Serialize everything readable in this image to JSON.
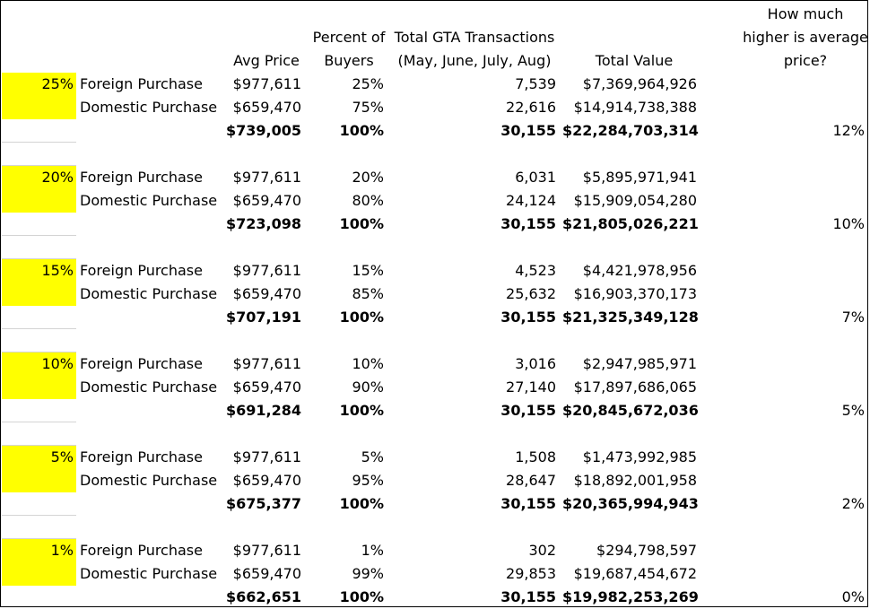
{
  "headers": {
    "avg_price": [
      "Avg Price"
    ],
    "percent_of_buyers": [
      "Percent of",
      "Buyers"
    ],
    "transactions": [
      "Total GTA Transactions",
      "(May, June, July, Aug)"
    ],
    "total_value": [
      "Total Value"
    ],
    "higher_price": [
      "How much",
      "higher is average",
      "price?"
    ]
  },
  "blocks": [
    {
      "scenario": "25%",
      "rows": [
        {
          "label": "Foreign Purchase",
          "avg_price": "$977,611",
          "percent": "25%",
          "transactions": "7,539",
          "total_value": "$7,369,964,926"
        },
        {
          "label": "Domestic Purchase",
          "avg_price": "$659,470",
          "percent": "75%",
          "transactions": "22,616",
          "total_value": "$14,914,738,388"
        }
      ],
      "total": {
        "avg_price": "$739,005",
        "percent": "100%",
        "transactions": "30,155",
        "total_value": "$22,284,703,314",
        "higher": "12%"
      }
    },
    {
      "scenario": "20%",
      "rows": [
        {
          "label": "Foreign Purchase",
          "avg_price": "$977,611",
          "percent": "20%",
          "transactions": "6,031",
          "total_value": "$5,895,971,941"
        },
        {
          "label": "Domestic Purchase",
          "avg_price": "$659,470",
          "percent": "80%",
          "transactions": "24,124",
          "total_value": "$15,909,054,280"
        }
      ],
      "total": {
        "avg_price": "$723,098",
        "percent": "100%",
        "transactions": "30,155",
        "total_value": "$21,805,026,221",
        "higher": "10%"
      }
    },
    {
      "scenario": "15%",
      "rows": [
        {
          "label": "Foreign Purchase",
          "avg_price": "$977,611",
          "percent": "15%",
          "transactions": "4,523",
          "total_value": "$4,421,978,956"
        },
        {
          "label": "Domestic Purchase",
          "avg_price": "$659,470",
          "percent": "85%",
          "transactions": "25,632",
          "total_value": "$16,903,370,173"
        }
      ],
      "total": {
        "avg_price": "$707,191",
        "percent": "100%",
        "transactions": "30,155",
        "total_value": "$21,325,349,128",
        "higher": "7%"
      }
    },
    {
      "scenario": "10%",
      "rows": [
        {
          "label": "Foreign Purchase",
          "avg_price": "$977,611",
          "percent": "10%",
          "transactions": "3,016",
          "total_value": "$2,947,985,971"
        },
        {
          "label": "Domestic Purchase",
          "avg_price": "$659,470",
          "percent": "90%",
          "transactions": "27,140",
          "total_value": "$17,897,686,065"
        }
      ],
      "total": {
        "avg_price": "$691,284",
        "percent": "100%",
        "transactions": "30,155",
        "total_value": "$20,845,672,036",
        "higher": "5%"
      }
    },
    {
      "scenario": "5%",
      "rows": [
        {
          "label": "Foreign Purchase",
          "avg_price": "$977,611",
          "percent": "5%",
          "transactions": "1,508",
          "total_value": "$1,473,992,985"
        },
        {
          "label": "Domestic Purchase",
          "avg_price": "$659,470",
          "percent": "95%",
          "transactions": "28,647",
          "total_value": "$18,892,001,958"
        }
      ],
      "total": {
        "avg_price": "$675,377",
        "percent": "100%",
        "transactions": "30,155",
        "total_value": "$20,365,994,943",
        "higher": "2%"
      }
    },
    {
      "scenario": "1%",
      "rows": [
        {
          "label": "Foreign Purchase",
          "avg_price": "$977,611",
          "percent": "1%",
          "transactions": "302",
          "total_value": "$294,798,597"
        },
        {
          "label": "Domestic Purchase",
          "avg_price": "$659,470",
          "percent": "99%",
          "transactions": "29,853",
          "total_value": "$19,687,454,672"
        }
      ],
      "total": {
        "avg_price": "$662,651",
        "percent": "100%",
        "transactions": "30,155",
        "total_value": "$19,982,253,269",
        "higher": "0%"
      }
    }
  ],
  "colors": {
    "highlight": "#ffff00",
    "text": "#000000",
    "border": "#000000"
  }
}
